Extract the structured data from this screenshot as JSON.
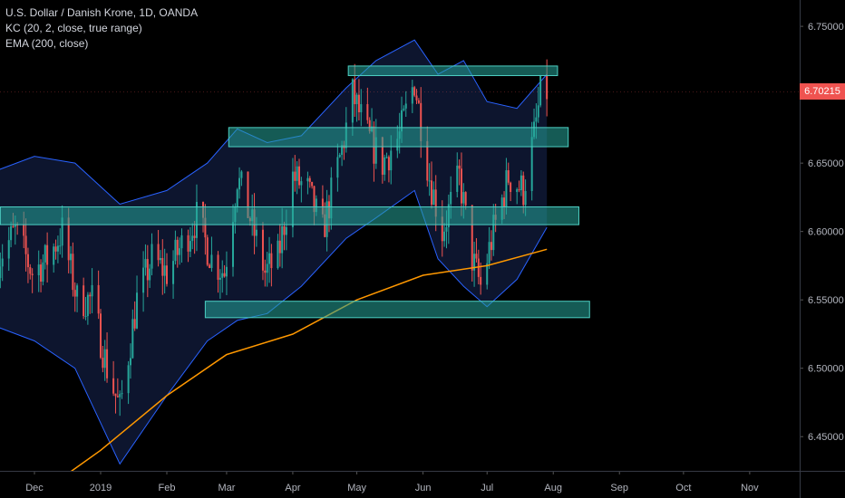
{
  "legend": {
    "symbol": "U.S. Dollar / Danish Krone, 1D, OANDA",
    "indicator_kc": "KC (20, 2, close, true range)",
    "indicator_ema": "EMA (200, close)"
  },
  "current_price": "6.70215",
  "colors": {
    "background": "#000000",
    "up": "#26a69a",
    "down": "#ef5350",
    "channel": "#2962ff",
    "channel_fill": "#0e1733",
    "ema": "#ff9800",
    "zone_fill": "#26a69a",
    "zone_stroke": "#4dd0c4",
    "axis_text": "#b2b5be",
    "price_tag": "#ef5350"
  },
  "chart_data": {
    "type": "candlestick",
    "title": "U.S. Dollar / Danish Krone, 1D, OANDA",
    "ylim": [
      6.425,
      6.76
    ],
    "y_ticks": [
      6.45,
      6.5,
      6.55,
      6.6,
      6.65,
      6.7,
      6.75
    ],
    "x_ticks": [
      {
        "label": "Dec",
        "date": "2018-12-01"
      },
      {
        "label": "2019",
        "date": "2019-01-01"
      },
      {
        "label": "Feb",
        "date": "2019-02-01"
      },
      {
        "label": "Mar",
        "date": "2019-03-01"
      },
      {
        "label": "Apr",
        "date": "2019-04-01"
      },
      {
        "label": "May",
        "date": "2019-05-01"
      },
      {
        "label": "Jun",
        "date": "2019-06-01"
      },
      {
        "label": "Jul",
        "date": "2019-07-01"
      },
      {
        "label": "Aug",
        "date": "2019-08-01"
      },
      {
        "label": "Sep",
        "date": "2019-09-01"
      },
      {
        "label": "Oct",
        "date": "2019-10-01"
      },
      {
        "label": "Nov",
        "date": "2019-11-01"
      }
    ],
    "close_anchors": [
      [
        "2018-11-14",
        6.58
      ],
      [
        "2018-11-22",
        6.6
      ],
      [
        "2018-11-30",
        6.57
      ],
      [
        "2018-12-07",
        6.58
      ],
      [
        "2018-12-14",
        6.6
      ],
      [
        "2018-12-21",
        6.55
      ],
      [
        "2018-12-28",
        6.55
      ],
      [
        "2019-01-04",
        6.5
      ],
      [
        "2019-01-10",
        6.47
      ],
      [
        "2019-01-18",
        6.55
      ],
      [
        "2019-01-25",
        6.58
      ],
      [
        "2019-02-01",
        6.57
      ],
      [
        "2019-02-08",
        6.59
      ],
      [
        "2019-02-15",
        6.61
      ],
      [
        "2019-02-22",
        6.58
      ],
      [
        "2019-02-28",
        6.57
      ],
      [
        "2019-03-06",
        6.64
      ],
      [
        "2019-03-12",
        6.61
      ],
      [
        "2019-03-19",
        6.57
      ],
      [
        "2019-03-25",
        6.58
      ],
      [
        "2019-04-01",
        6.64
      ],
      [
        "2019-04-08",
        6.63
      ],
      [
        "2019-04-15",
        6.6
      ],
      [
        "2019-04-24",
        6.66
      ],
      [
        "2019-04-29",
        6.7
      ],
      [
        "2019-05-06",
        6.67
      ],
      [
        "2019-05-13",
        6.65
      ],
      [
        "2019-05-21",
        6.67
      ],
      [
        "2019-05-28",
        6.71
      ],
      [
        "2019-06-04",
        6.64
      ],
      [
        "2019-06-10",
        6.6
      ],
      [
        "2019-06-18",
        6.64
      ],
      [
        "2019-06-24",
        6.58
      ],
      [
        "2019-06-28",
        6.56
      ],
      [
        "2019-07-04",
        6.6
      ],
      [
        "2019-07-11",
        6.64
      ],
      [
        "2019-07-18",
        6.63
      ],
      [
        "2019-07-23",
        6.67
      ],
      [
        "2019-07-26",
        6.7
      ],
      [
        "2019-07-29",
        6.70215
      ]
    ],
    "ema_200": [
      [
        "2018-12-14",
        6.42
      ],
      [
        "2019-01-01",
        6.44
      ],
      [
        "2019-02-01",
        6.48
      ],
      [
        "2019-03-01",
        6.51
      ],
      [
        "2019-04-01",
        6.525
      ],
      [
        "2019-05-01",
        6.55
      ],
      [
        "2019-06-01",
        6.568
      ],
      [
        "2019-07-01",
        6.575
      ],
      [
        "2019-07-29",
        6.587
      ]
    ],
    "kc_upper": [
      [
        "2018-11-14",
        6.645
      ],
      [
        "2018-12-01",
        6.655
      ],
      [
        "2018-12-20",
        6.65
      ],
      [
        "2019-01-10",
        6.62
      ],
      [
        "2019-02-01",
        6.63
      ],
      [
        "2019-02-20",
        6.65
      ],
      [
        "2019-03-06",
        6.675
      ],
      [
        "2019-03-20",
        6.665
      ],
      [
        "2019-04-05",
        6.67
      ],
      [
        "2019-04-26",
        6.705
      ],
      [
        "2019-05-10",
        6.725
      ],
      [
        "2019-05-28",
        6.74
      ],
      [
        "2019-06-08",
        6.715
      ],
      [
        "2019-06-20",
        6.725
      ],
      [
        "2019-07-01",
        6.695
      ],
      [
        "2019-07-15",
        6.69
      ],
      [
        "2019-07-29",
        6.715
      ]
    ],
    "kc_lower": [
      [
        "2018-11-14",
        6.53
      ],
      [
        "2018-12-01",
        6.52
      ],
      [
        "2018-12-20",
        6.5
      ],
      [
        "2019-01-10",
        6.43
      ],
      [
        "2019-02-01",
        6.48
      ],
      [
        "2019-02-20",
        6.52
      ],
      [
        "2019-03-06",
        6.535
      ],
      [
        "2019-03-20",
        6.54
      ],
      [
        "2019-04-05",
        6.56
      ],
      [
        "2019-04-26",
        6.595
      ],
      [
        "2019-05-10",
        6.61
      ],
      [
        "2019-05-28",
        6.63
      ],
      [
        "2019-06-08",
        6.58
      ],
      [
        "2019-06-20",
        6.56
      ],
      [
        "2019-07-01",
        6.545
      ],
      [
        "2019-07-15",
        6.565
      ],
      [
        "2019-07-29",
        6.603
      ]
    ],
    "zones": [
      {
        "start": "2019-04-27",
        "end": "2019-08-03",
        "low": 6.714,
        "high": 6.721
      },
      {
        "start": "2019-03-02",
        "end": "2019-08-08",
        "low": 6.662,
        "high": 6.676
      },
      {
        "start": "2018-11-15",
        "end": "2019-08-13",
        "low": 6.605,
        "high": 6.618
      },
      {
        "start": "2019-02-19",
        "end": "2019-08-18",
        "low": 6.537,
        "high": 6.549
      }
    ]
  }
}
